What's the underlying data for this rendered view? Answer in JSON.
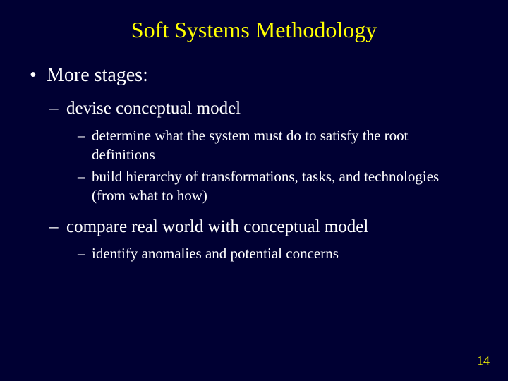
{
  "colors": {
    "background": "#000033",
    "title": "#ffff00",
    "body": "#ffffff",
    "pagenum": "#ffff00"
  },
  "fonts": {
    "family": "Times New Roman",
    "title_size_pt": 32,
    "lvl1_size_pt": 28,
    "lvl2_size_pt": 25,
    "lvl3_size_pt": 21,
    "pagenum_size_pt": 18
  },
  "title": "Soft Systems Methodology",
  "bullets": {
    "lvl1_0": "More stages:",
    "lvl2_0": "devise conceptual model",
    "lvl3_0": "determine what the system must do to satisfy the root definitions",
    "lvl3_1": "build hierarchy of transformations, tasks, and technologies (from what to how)",
    "lvl2_1": "compare real world with conceptual model",
    "lvl3_2": "identify anomalies and potential concerns"
  },
  "page_number": "14"
}
